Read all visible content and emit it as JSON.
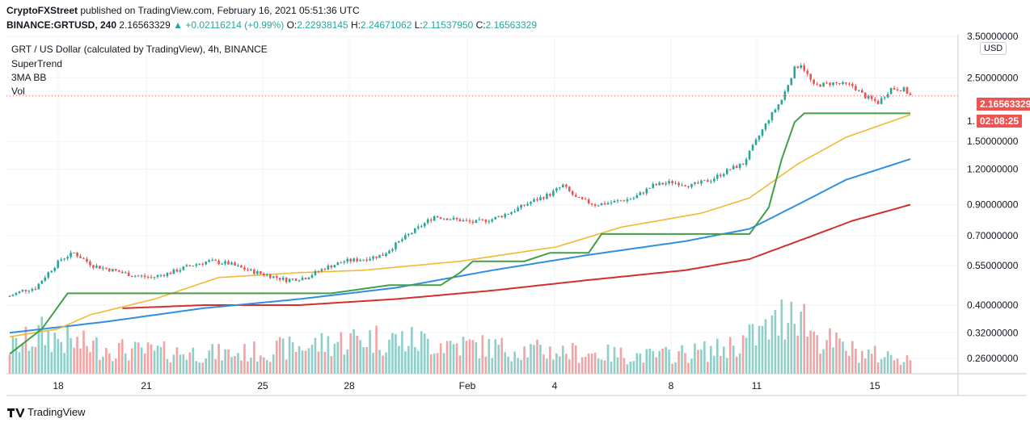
{
  "header": {
    "publisher": "CryptoFXStreet",
    "published_text": "published on TradingView.com, February 16, 2021 05:51:36 UTC",
    "symbol": "BINANCE:GRTUSD, 240",
    "last": "2.16563329",
    "change": "+0.02116214 (+0.99%)",
    "o_label": "O:",
    "o_value": "2.22938145",
    "h_label": "H:",
    "h_value": "2.24671062",
    "l_label": "L:",
    "l_value": "2.11537950",
    "c_label": "C:",
    "c_value": "2.16563329"
  },
  "legend": {
    "title": "GRT / US Dollar (calculated by TradingView), 4h, BINANCE",
    "indicators": [
      "SuperTrend",
      "3MA BB",
      "Vol"
    ]
  },
  "price_axis": {
    "currency": "USD",
    "ticks": [
      "3.50000000",
      "2.50000000",
      "1.50000000",
      "1.20000000",
      "0.90000000",
      "0.70000000",
      "0.55000000",
      "0.40000000",
      "0.32000000",
      "0.26000000"
    ],
    "partial_tick": "1."
  },
  "price_tag": {
    "value": "2.16563329",
    "countdown": "02:08:25"
  },
  "time_axis": {
    "labels": [
      "18",
      "21",
      "25",
      "28",
      "Feb",
      "4",
      "8",
      "11",
      "15"
    ]
  },
  "colors": {
    "up": "#26a69a",
    "down": "#ef5350",
    "supertrend": "#43a047",
    "ma_fast": "#f2b933",
    "ma_mid": "#2f8fe0",
    "ma_slow": "#d32f2f",
    "vol_up": "#8fcfc8",
    "vol_down": "#f2a3a3",
    "price_tag": "#ef5350"
  },
  "chart_data": {
    "type": "candlestick",
    "title": "GRT / US Dollar (calculated by TradingView), 4h, BINANCE",
    "y_scale": "log",
    "ylim": [
      0.23,
      3.5
    ],
    "x_labels": [
      "18",
      "21",
      "25",
      "28",
      "Feb",
      "4",
      "8",
      "11",
      "15"
    ],
    "close_keyframes": [
      [
        0,
        0.43
      ],
      [
        4,
        0.45
      ],
      [
        8,
        0.46
      ],
      [
        12,
        0.52
      ],
      [
        16,
        0.58
      ],
      [
        20,
        0.61
      ],
      [
        26,
        0.55
      ],
      [
        32,
        0.53
      ],
      [
        38,
        0.51
      ],
      [
        44,
        0.5
      ],
      [
        50,
        0.52
      ],
      [
        56,
        0.55
      ],
      [
        62,
        0.57
      ],
      [
        68,
        0.56
      ],
      [
        74,
        0.53
      ],
      [
        80,
        0.51
      ],
      [
        86,
        0.49
      ],
      [
        92,
        0.5
      ],
      [
        98,
        0.54
      ],
      [
        104,
        0.57
      ],
      [
        110,
        0.58
      ],
      [
        116,
        0.6
      ],
      [
        122,
        0.68
      ],
      [
        128,
        0.76
      ],
      [
        132,
        0.82
      ],
      [
        138,
        0.8
      ],
      [
        144,
        0.78
      ],
      [
        150,
        0.8
      ],
      [
        156,
        0.85
      ],
      [
        162,
        0.92
      ],
      [
        168,
        0.98
      ],
      [
        172,
        1.05
      ],
      [
        176,
        0.95
      ],
      [
        182,
        0.9
      ],
      [
        188,
        0.92
      ],
      [
        194,
        0.95
      ],
      [
        200,
        1.05
      ],
      [
        206,
        1.08
      ],
      [
        212,
        1.05
      ],
      [
        218,
        1.1
      ],
      [
        224,
        1.2
      ],
      [
        228,
        1.25
      ],
      [
        232,
        1.5
      ],
      [
        236,
        1.8
      ],
      [
        240,
        2.1
      ],
      [
        244,
        2.7
      ],
      [
        246,
        2.8
      ],
      [
        250,
        2.35
      ],
      [
        256,
        2.4
      ],
      [
        262,
        2.35
      ],
      [
        266,
        2.15
      ],
      [
        270,
        2.05
      ],
      [
        274,
        2.3
      ],
      [
        278,
        2.28
      ],
      [
        280,
        2.17
      ]
    ],
    "volume_keyframes": [
      [
        0,
        0.32
      ],
      [
        10,
        0.5
      ],
      [
        20,
        0.38
      ],
      [
        40,
        0.28
      ],
      [
        70,
        0.25
      ],
      [
        110,
        0.45
      ],
      [
        130,
        0.4
      ],
      [
        160,
        0.3
      ],
      [
        200,
        0.22
      ],
      [
        220,
        0.3
      ],
      [
        238,
        0.6
      ],
      [
        244,
        0.95
      ],
      [
        250,
        0.5
      ],
      [
        265,
        0.25
      ],
      [
        280,
        0.2
      ]
    ],
    "supertrend": [
      [
        0,
        0.27
      ],
      [
        10,
        0.33
      ],
      [
        18,
        0.44
      ],
      [
        100,
        0.44
      ],
      [
        118,
        0.47
      ],
      [
        134,
        0.47
      ],
      [
        140,
        0.52
      ],
      [
        144,
        0.57
      ],
      [
        160,
        0.57
      ],
      [
        168,
        0.61
      ],
      [
        180,
        0.61
      ],
      [
        184,
        0.71
      ],
      [
        230,
        0.71
      ],
      [
        236,
        0.88
      ],
      [
        240,
        1.3
      ],
      [
        244,
        1.75
      ],
      [
        247,
        1.88
      ],
      [
        280,
        1.88
      ]
    ],
    "ma_fast": [
      [
        0,
        0.31
      ],
      [
        15,
        0.33
      ],
      [
        25,
        0.37
      ],
      [
        45,
        0.42
      ],
      [
        65,
        0.5
      ],
      [
        90,
        0.52
      ],
      [
        110,
        0.53
      ],
      [
        140,
        0.57
      ],
      [
        170,
        0.64
      ],
      [
        190,
        0.75
      ],
      [
        215,
        0.84
      ],
      [
        230,
        0.95
      ],
      [
        245,
        1.25
      ],
      [
        260,
        1.55
      ],
      [
        280,
        1.86
      ]
    ],
    "ma_mid": [
      [
        0,
        0.32
      ],
      [
        30,
        0.35
      ],
      [
        60,
        0.39
      ],
      [
        90,
        0.42
      ],
      [
        120,
        0.46
      ],
      [
        150,
        0.53
      ],
      [
        180,
        0.6
      ],
      [
        210,
        0.67
      ],
      [
        230,
        0.74
      ],
      [
        245,
        0.9
      ],
      [
        260,
        1.1
      ],
      [
        280,
        1.3
      ]
    ],
    "ma_slow": [
      [
        35,
        0.39
      ],
      [
        60,
        0.4
      ],
      [
        90,
        0.4
      ],
      [
        120,
        0.42
      ],
      [
        150,
        0.45
      ],
      [
        180,
        0.49
      ],
      [
        210,
        0.53
      ],
      [
        230,
        0.58
      ],
      [
        245,
        0.67
      ],
      [
        262,
        0.79
      ],
      [
        280,
        0.9
      ]
    ]
  }
}
